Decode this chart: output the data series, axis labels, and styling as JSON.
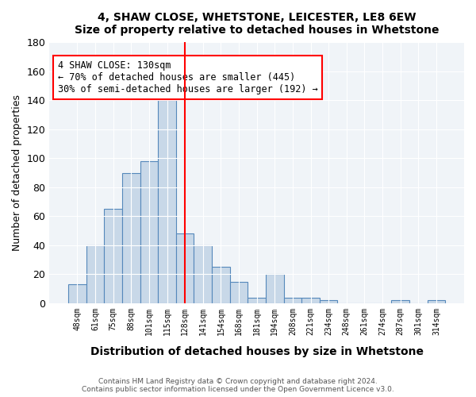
{
  "title1": "4, SHAW CLOSE, WHETSTONE, LEICESTER, LE8 6EW",
  "title2": "Size of property relative to detached houses in Whetstone",
  "xlabel": "Distribution of detached houses by size in Whetstone",
  "ylabel": "Number of detached properties",
  "categories": [
    "48sqm",
    "61sqm",
    "75sqm",
    "88sqm",
    "101sqm",
    "115sqm",
    "128sqm",
    "141sqm",
    "154sqm",
    "168sqm",
    "181sqm",
    "194sqm",
    "208sqm",
    "221sqm",
    "234sqm",
    "248sqm",
    "261sqm",
    "274sqm",
    "287sqm",
    "301sqm",
    "314sqm"
  ],
  "values": [
    13,
    40,
    65,
    90,
    98,
    140,
    48,
    40,
    25,
    15,
    4,
    20,
    4,
    4,
    2,
    0,
    0,
    0,
    2,
    0,
    2
  ],
  "bar_color": "#c8d8e8",
  "bar_edge_color": "#5588bb",
  "vline_x": 6,
  "vline_color": "red",
  "ylim": [
    0,
    180
  ],
  "yticks": [
    0,
    20,
    40,
    60,
    80,
    100,
    120,
    140,
    160,
    180
  ],
  "annotation_text": "4 SHAW CLOSE: 130sqm\n← 70% of detached houses are smaller (445)\n30% of semi-detached houses are larger (192) →",
  "annotation_box_color": "white",
  "annotation_box_edge": "red",
  "footer1": "Contains HM Land Registry data © Crown copyright and database right 2024.",
  "footer2": "Contains public sector information licensed under the Open Government Licence v3.0.",
  "background_color": "#f0f4f8"
}
